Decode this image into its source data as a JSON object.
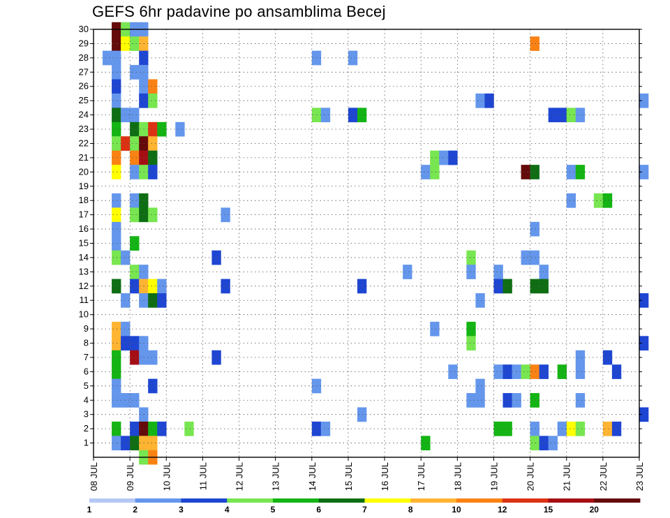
{
  "chart_data": {
    "type": "heatmap",
    "title": "GEFS 6hr padavine po ansamblima Becej",
    "x_ticks": [
      "08 JUL",
      "09 JUL",
      "10 JUL",
      "11 JUL",
      "12 JUL",
      "13 JUL",
      "14 JUL",
      "15 JUL",
      "16 JUL",
      "17 JUL",
      "18 JUL",
      "19 JUL",
      "20 JUL",
      "21 JUL",
      "22 JUL",
      "23 JUL"
    ],
    "y_ticks": [
      1,
      2,
      3,
      4,
      5,
      6,
      7,
      8,
      9,
      10,
      11,
      12,
      13,
      14,
      15,
      16,
      17,
      18,
      19,
      20,
      21,
      22,
      23,
      24,
      25,
      26,
      27,
      28,
      29,
      30
    ],
    "ylim": [
      0,
      30
    ],
    "x_start": "08 JUL 00Z",
    "x_step_hours": 6,
    "grid": true,
    "color_bins": [
      {
        "min": 1,
        "max": 2,
        "color": "#b4c8f5"
      },
      {
        "min": 2,
        "max": 3,
        "color": "#6496ec"
      },
      {
        "min": 3,
        "max": 4,
        "color": "#1e46d2"
      },
      {
        "min": 4,
        "max": 5,
        "color": "#78e650"
      },
      {
        "min": 5,
        "max": 6,
        "color": "#14b414"
      },
      {
        "min": 6,
        "max": 7,
        "color": "#0f6e14"
      },
      {
        "min": 7,
        "max": 8,
        "color": "#ffff00"
      },
      {
        "min": 8,
        "max": 10,
        "color": "#ffb432"
      },
      {
        "min": 10,
        "max": 12,
        "color": "#fa8214"
      },
      {
        "min": 12,
        "max": 15,
        "color": "#dc3214"
      },
      {
        "min": 15,
        "max": 20,
        "color": "#a50f14"
      },
      {
        "min": 20,
        "max": null,
        "color": "#640a0a"
      }
    ],
    "colorbar_labels": [
      "1",
      "2",
      "3",
      "4",
      "5",
      "6",
      "7",
      "8",
      "10",
      "12",
      "15",
      "20"
    ],
    "cells": [
      [
        2,
        30,
        11
      ],
      [
        3,
        30,
        3
      ],
      [
        4,
        30,
        1
      ],
      [
        5,
        30,
        1
      ],
      [
        2,
        29,
        11
      ],
      [
        3,
        29,
        6
      ],
      [
        4,
        29,
        3
      ],
      [
        5,
        29,
        7
      ],
      [
        48,
        29,
        8
      ],
      [
        1,
        28,
        1
      ],
      [
        2,
        28,
        1
      ],
      [
        5,
        28,
        2
      ],
      [
        24,
        28,
        1
      ],
      [
        28,
        28,
        1
      ],
      [
        2,
        27,
        1
      ],
      [
        4,
        27,
        1
      ],
      [
        5,
        27,
        1
      ],
      [
        2,
        26,
        2
      ],
      [
        5,
        26,
        1
      ],
      [
        6,
        26,
        8
      ],
      [
        2,
        25,
        1
      ],
      [
        5,
        25,
        2
      ],
      [
        6,
        25,
        3
      ],
      [
        42,
        25,
        1
      ],
      [
        43,
        25,
        2
      ],
      [
        60,
        25,
        1
      ],
      [
        2,
        24,
        5
      ],
      [
        3,
        24,
        1
      ],
      [
        4,
        24,
        1
      ],
      [
        24,
        24,
        3
      ],
      [
        25,
        24,
        1
      ],
      [
        28,
        24,
        2
      ],
      [
        29,
        24,
        4
      ],
      [
        50,
        24,
        2
      ],
      [
        51,
        24,
        2
      ],
      [
        52,
        24,
        3
      ],
      [
        53,
        24,
        1
      ],
      [
        2,
        23,
        4
      ],
      [
        4,
        23,
        5
      ],
      [
        5,
        23,
        3
      ],
      [
        6,
        23,
        9
      ],
      [
        7,
        23,
        4
      ],
      [
        9,
        23,
        1
      ],
      [
        2,
        22,
        3
      ],
      [
        3,
        22,
        9
      ],
      [
        4,
        22,
        3
      ],
      [
        5,
        22,
        11
      ],
      [
        6,
        22,
        7
      ],
      [
        2,
        21,
        8
      ],
      [
        4,
        21,
        8
      ],
      [
        5,
        21,
        10
      ],
      [
        6,
        21,
        5
      ],
      [
        37,
        21,
        3
      ],
      [
        38,
        21,
        1
      ],
      [
        39,
        21,
        2
      ],
      [
        2,
        20,
        6
      ],
      [
        4,
        20,
        1
      ],
      [
        5,
        20,
        3
      ],
      [
        6,
        20,
        2
      ],
      [
        36,
        20,
        1
      ],
      [
        37,
        20,
        3
      ],
      [
        47,
        20,
        11
      ],
      [
        48,
        20,
        5
      ],
      [
        52,
        20,
        1
      ],
      [
        53,
        20,
        4
      ],
      [
        60,
        20,
        1
      ],
      [
        2,
        18,
        1
      ],
      [
        4,
        18,
        1
      ],
      [
        5,
        18,
        5
      ],
      [
        52,
        18,
        1
      ],
      [
        55,
        18,
        3
      ],
      [
        56,
        18,
        4
      ],
      [
        2,
        17,
        6
      ],
      [
        4,
        17,
        3
      ],
      [
        5,
        17,
        5
      ],
      [
        6,
        17,
        3
      ],
      [
        14,
        17,
        1
      ],
      [
        2,
        16,
        1
      ],
      [
        48,
        16,
        1
      ],
      [
        2,
        15,
        1
      ],
      [
        4,
        15,
        4
      ],
      [
        2,
        14,
        3
      ],
      [
        3,
        14,
        1
      ],
      [
        13,
        14,
        2
      ],
      [
        41,
        14,
        3
      ],
      [
        47,
        14,
        1
      ],
      [
        48,
        14,
        1
      ],
      [
        4,
        13,
        3
      ],
      [
        5,
        13,
        1
      ],
      [
        34,
        13,
        1
      ],
      [
        41,
        13,
        1
      ],
      [
        44,
        13,
        1
      ],
      [
        49,
        13,
        1
      ],
      [
        2,
        12,
        5
      ],
      [
        4,
        12,
        2
      ],
      [
        5,
        12,
        7
      ],
      [
        6,
        12,
        6
      ],
      [
        7,
        12,
        1
      ],
      [
        14,
        12,
        2
      ],
      [
        29,
        12,
        2
      ],
      [
        44,
        12,
        2
      ],
      [
        45,
        12,
        5
      ],
      [
        48,
        12,
        5
      ],
      [
        49,
        12,
        5
      ],
      [
        3,
        11,
        1
      ],
      [
        5,
        11,
        1
      ],
      [
        6,
        11,
        5
      ],
      [
        7,
        11,
        2
      ],
      [
        42,
        11,
        1
      ],
      [
        60,
        11,
        2
      ],
      [
        2,
        9,
        7
      ],
      [
        3,
        9,
        1
      ],
      [
        37,
        9,
        1
      ],
      [
        41,
        9,
        4
      ],
      [
        2,
        8,
        7
      ],
      [
        3,
        8,
        2
      ],
      [
        4,
        8,
        2
      ],
      [
        5,
        8,
        1
      ],
      [
        41,
        8,
        3
      ],
      [
        60,
        8,
        2
      ],
      [
        2,
        7,
        4
      ],
      [
        4,
        7,
        10
      ],
      [
        5,
        7,
        1
      ],
      [
        6,
        7,
        1
      ],
      [
        13,
        7,
        2
      ],
      [
        53,
        7,
        1
      ],
      [
        56,
        7,
        2
      ],
      [
        2,
        6,
        4
      ],
      [
        39,
        6,
        1
      ],
      [
        44,
        6,
        1
      ],
      [
        45,
        6,
        2
      ],
      [
        46,
        6,
        1
      ],
      [
        47,
        6,
        3
      ],
      [
        48,
        6,
        8
      ],
      [
        49,
        6,
        2
      ],
      [
        51,
        6,
        4
      ],
      [
        53,
        6,
        1
      ],
      [
        57,
        6,
        2
      ],
      [
        2,
        5,
        1
      ],
      [
        6,
        5,
        2
      ],
      [
        24,
        5,
        1
      ],
      [
        42,
        5,
        1
      ],
      [
        2,
        4,
        1
      ],
      [
        3,
        4,
        1
      ],
      [
        4,
        4,
        1
      ],
      [
        41,
        4,
        1
      ],
      [
        42,
        4,
        1
      ],
      [
        45,
        4,
        2
      ],
      [
        46,
        4,
        1
      ],
      [
        48,
        4,
        4
      ],
      [
        53,
        4,
        1
      ],
      [
        5,
        3,
        1
      ],
      [
        29,
        3,
        1
      ],
      [
        60,
        3,
        2
      ],
      [
        2,
        2,
        4
      ],
      [
        4,
        2,
        2
      ],
      [
        5,
        2,
        11
      ],
      [
        6,
        2,
        4
      ],
      [
        7,
        2,
        2
      ],
      [
        10,
        2,
        3
      ],
      [
        24,
        2,
        2
      ],
      [
        25,
        2,
        1
      ],
      [
        44,
        2,
        4
      ],
      [
        45,
        2,
        4
      ],
      [
        48,
        2,
        1
      ],
      [
        51,
        2,
        1
      ],
      [
        52,
        2,
        6
      ],
      [
        53,
        2,
        3
      ],
      [
        56,
        2,
        7
      ],
      [
        57,
        2,
        2
      ],
      [
        2,
        1,
        1
      ],
      [
        3,
        1,
        2
      ],
      [
        4,
        1,
        5
      ],
      [
        5,
        1,
        7
      ],
      [
        6,
        1,
        7
      ],
      [
        36,
        1,
        4
      ],
      [
        48,
        1,
        3
      ],
      [
        49,
        1,
        2
      ],
      [
        50,
        1,
        1
      ],
      [
        5,
        0,
        3
      ],
      [
        6,
        0,
        8
      ]
    ]
  }
}
